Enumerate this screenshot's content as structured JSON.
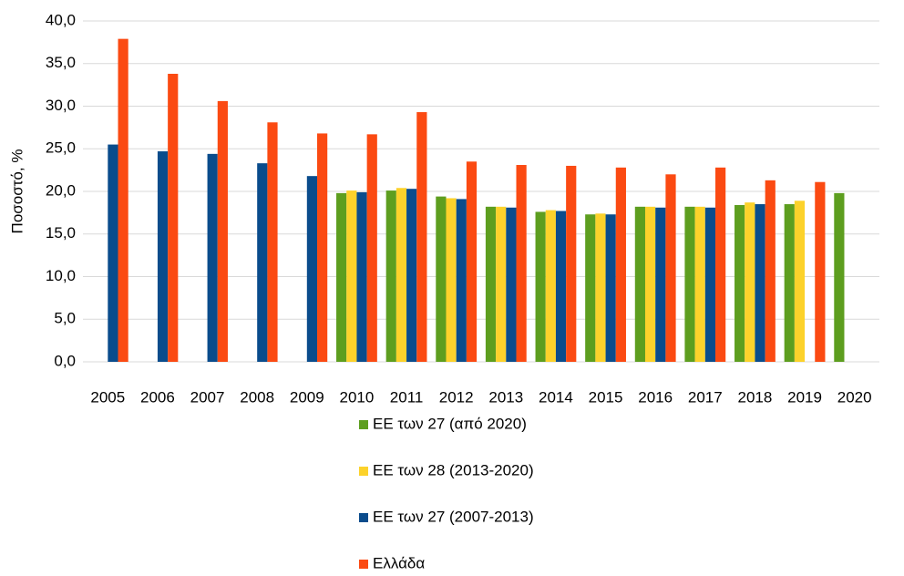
{
  "chart_data": {
    "type": "bar",
    "y_label": "Ποσοστό, %",
    "categories": [
      "2005",
      "2006",
      "2007",
      "2008",
      "2009",
      "2010",
      "2011",
      "2012",
      "2013",
      "2014",
      "2015",
      "2016",
      "2017",
      "2018",
      "2019",
      "2020"
    ],
    "series": [
      {
        "name": "ΕΕ των 27 (από 2020)",
        "color": "#5d9e1f",
        "values": [
          null,
          null,
          null,
          null,
          null,
          19.8,
          20.1,
          19.4,
          18.2,
          17.6,
          17.3,
          18.2,
          18.2,
          18.4,
          18.5,
          19.8
        ]
      },
      {
        "name": "ΕΕ των 28 (2013-2020)",
        "color": "#fcd22b",
        "values": [
          null,
          null,
          null,
          null,
          null,
          20.1,
          20.4,
          19.2,
          18.2,
          17.8,
          17.4,
          18.2,
          18.2,
          18.7,
          18.9,
          null
        ]
      },
      {
        "name": "ΕΕ των 27 (2007-2013)",
        "color": "#0a4c8c",
        "values": [
          25.5,
          24.7,
          24.4,
          23.3,
          21.8,
          19.9,
          20.3,
          19.1,
          18.1,
          17.7,
          17.3,
          18.1,
          18.1,
          18.5,
          null,
          null
        ]
      },
      {
        "name": "Ελλάδα",
        "color": "#fb4a12",
        "values": [
          37.9,
          33.8,
          30.6,
          28.1,
          26.8,
          26.7,
          29.3,
          23.5,
          23.1,
          23.0,
          22.8,
          22.0,
          22.8,
          21.3,
          21.1,
          null
        ]
      }
    ],
    "ylim": [
      0,
      40
    ],
    "yticks": [
      {
        "value": 0,
        "label": "0,0"
      },
      {
        "value": 5,
        "label": "5,0"
      },
      {
        "value": 10,
        "label": "10,0"
      },
      {
        "value": 15,
        "label": "15,0"
      },
      {
        "value": 20,
        "label": "20,0"
      },
      {
        "value": 25,
        "label": "25,0"
      },
      {
        "value": 30,
        "label": "30,0"
      },
      {
        "value": 35,
        "label": "35,0"
      },
      {
        "value": 40,
        "label": "40,0"
      }
    ],
    "grid": true,
    "legend": "bottom"
  }
}
